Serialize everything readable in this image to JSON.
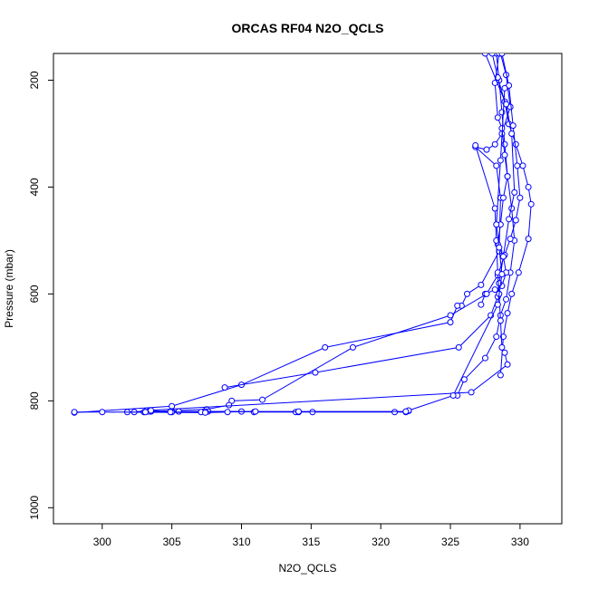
{
  "chart_data": {
    "type": "line",
    "title": "ORCAS RF04 N2O_QCLS",
    "xlabel": "N2O_QCLS",
    "ylabel": "Pressure (mbar)",
    "xlim": [
      296.5,
      333
    ],
    "ylim": [
      1030,
      150
    ],
    "y_reversed": true,
    "xticks": [
      300,
      305,
      310,
      315,
      320,
      325,
      330
    ],
    "yticks": [
      200,
      400,
      600,
      800,
      1000
    ],
    "grid": false,
    "legend": "none",
    "series_color": "#0000ff",
    "marker": "open-circle",
    "series": [
      {
        "x": [
          328.3,
          328.5,
          328.7,
          328.9,
          329.1,
          329.4,
          329.6,
          329.3,
          329.0,
          328.6,
          328.3,
          327.5,
          326.0,
          325.5
        ],
        "y": [
          150,
          200,
          260,
          320,
          380,
          440,
          500,
          560,
          610,
          640,
          680,
          720,
          760,
          790
        ]
      },
      {
        "x": [
          328.0,
          328.4,
          328.9,
          329.2,
          329.7,
          330.2,
          330.6,
          330.8,
          330.6,
          329.9,
          329.4,
          329.1,
          328.8,
          328.6
        ],
        "y": [
          150,
          195,
          240,
          282,
          320,
          360,
          400,
          432,
          497,
          560,
          600,
          636,
          680,
          752
        ]
      },
      {
        "x": [
          328.6,
          329.0,
          329.3,
          328.7,
          328.2,
          327.6,
          326.8,
          328.3,
          328.6,
          328.5,
          327.2,
          326.2,
          325.8,
          325.5,
          325.0,
          316.0,
          310.0,
          305.0,
          298.0
        ],
        "y": [
          150,
          190,
          250,
          300,
          320,
          330,
          325,
          360,
          420,
          520,
          583,
          600,
          622,
          622,
          653,
          700,
          770,
          810,
          822
        ]
      },
      {
        "x": [
          328.5,
          328.2,
          328.4,
          328.7,
          328.9,
          329.1,
          328.8,
          328.6,
          328.4,
          328.8,
          329.0,
          328.7,
          328.2,
          327.5,
          327.2
        ],
        "y": [
          150,
          205,
          270,
          290,
          340,
          380,
          420,
          470,
          507,
          530,
          560,
          585,
          592,
          600,
          620
        ]
      },
      {
        "x": [
          328.7,
          329.2,
          329.5,
          329.8,
          330.0,
          329.7,
          329.3,
          328.9,
          328.4,
          327.6,
          325.0,
          318.0,
          311.5,
          309.3,
          309.1,
          307.5,
          303.5
        ],
        "y": [
          150,
          210,
          285,
          360,
          420,
          462,
          497,
          527,
          565,
          600,
          640,
          700,
          798,
          800,
          808,
          816,
          820
        ]
      },
      {
        "x": [
          327.5,
          329.0,
          329.4,
          329.6,
          329.2,
          328.8,
          328.5,
          328.4,
          327.9,
          325.6,
          315.3,
          308.8
        ],
        "y": [
          150,
          245,
          300,
          410,
          460,
          530,
          580,
          605,
          640,
          700,
          747,
          775
        ]
      },
      {
        "x": [
          326.8,
          328.2,
          328.3,
          328.4,
          328.5,
          328.6,
          328.7,
          328.9,
          329.1,
          326.5,
          303.2,
          302.3,
          301.8,
          303.0,
          303.3,
          305.0,
          305.5,
          307.3,
          307.6,
          310.0,
          310.9,
          313.9,
          314.1,
          315.1,
          321.0,
          321.8,
          322.0
        ],
        "y": [
          322,
          440,
          500,
          560,
          600,
          650,
          700,
          710,
          732,
          784,
          818,
          821,
          821,
          821,
          820,
          820,
          820,
          820,
          820,
          820,
          821,
          821,
          821,
          821,
          821,
          821,
          819
        ]
      },
      {
        "x": [
          328.9,
          328.6,
          328.3,
          328.5,
          328.7,
          328.4,
          325.2,
          322.0,
          321.8,
          314.1,
          307.4,
          307.1,
          305.0,
          304.9,
          303.5,
          303.1,
          298.0,
          300.0,
          307.4,
          309.0,
          311.0
        ],
        "y": [
          215,
          350,
          470,
          513,
          563,
          620,
          790,
          818,
          820,
          820,
          820,
          821,
          821,
          821,
          818,
          821,
          821,
          821,
          822,
          821,
          820
        ]
      }
    ]
  }
}
